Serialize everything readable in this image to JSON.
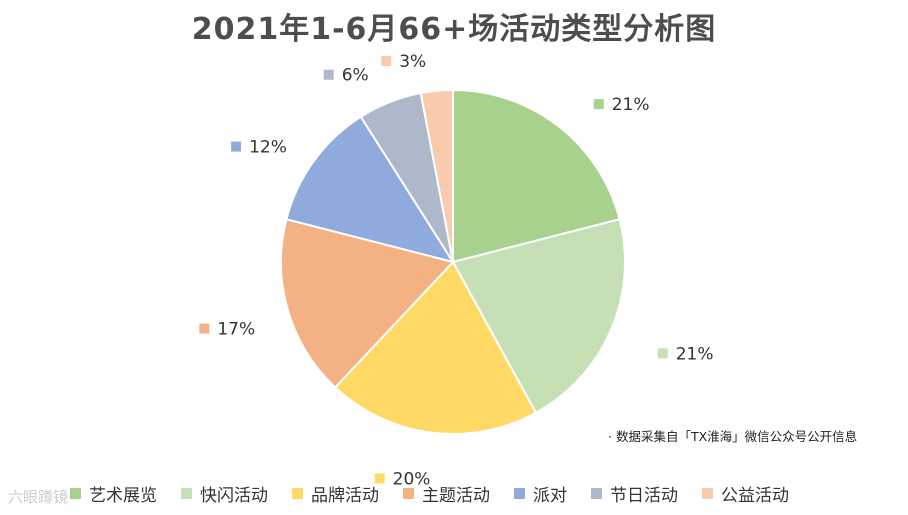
{
  "chart_data": {
    "type": "pie",
    "title": "2021年1-6月66+场活动类型分析图",
    "categories": [
      "艺术展览",
      "快闪活动",
      "品牌活动",
      "主题活动",
      "派对",
      "节日活动",
      "公益活动"
    ],
    "values": [
      21,
      21,
      20,
      17,
      12,
      6,
      3
    ],
    "labels": [
      "21%",
      "21%",
      "20%",
      "17%",
      "12%",
      "6%",
      "3%"
    ],
    "colors": [
      "#a9d18e",
      "#c5e0b4",
      "#ffd966",
      "#f4b183",
      "#8faadc",
      "#adb9ca",
      "#f8cbad"
    ],
    "legend_position": "bottom",
    "start_angle": "12 o'clock, clockwise"
  },
  "note": "·  数据采集自「TX淮海」微信公众号公开信息",
  "watermark": "六眼蹲镜"
}
